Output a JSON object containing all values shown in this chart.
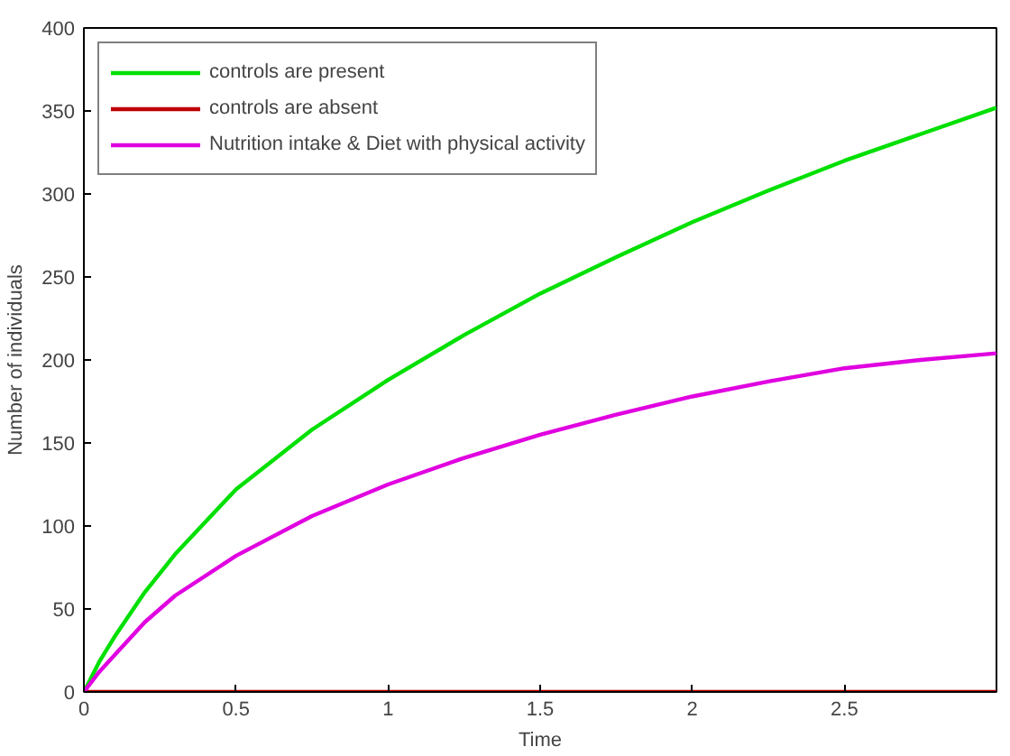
{
  "chart_data": {
    "type": "line",
    "xlabel": "Time",
    "ylabel": "Number of individuals",
    "x": [
      0,
      0.05,
      0.1,
      0.2,
      0.3,
      0.5,
      0.75,
      1,
      1.25,
      1.5,
      1.75,
      2,
      2.25,
      2.5,
      2.75,
      3
    ],
    "series": [
      {
        "name": "controls are present",
        "color": "#00e000",
        "values": [
          0,
          18,
          33,
          60,
          83,
          122,
          158,
          188,
          215,
          240,
          262,
          283,
          302,
          320,
          336,
          352
        ]
      },
      {
        "name": "controls are absent",
        "color": "#c00000",
        "values": [
          0,
          0,
          0,
          0,
          0,
          0,
          0,
          0,
          0,
          0,
          0,
          0,
          0,
          0,
          0,
          0
        ]
      },
      {
        "name": "Nutrition intake & Diet with physical activity",
        "color": "#e000e0",
        "values": [
          0,
          12,
          22,
          42,
          58,
          82,
          106,
          125,
          141,
          155,
          167,
          178,
          187,
          195,
          200,
          204
        ]
      }
    ],
    "xlim": [
      0,
      3
    ],
    "ylim": [
      0,
      400
    ],
    "xticks": [
      0,
      0.5,
      1,
      1.5,
      2,
      2.5
    ],
    "yticks": [
      0,
      50,
      100,
      150,
      200,
      250,
      300,
      350,
      400
    ],
    "grid": false,
    "legend": "top left"
  }
}
